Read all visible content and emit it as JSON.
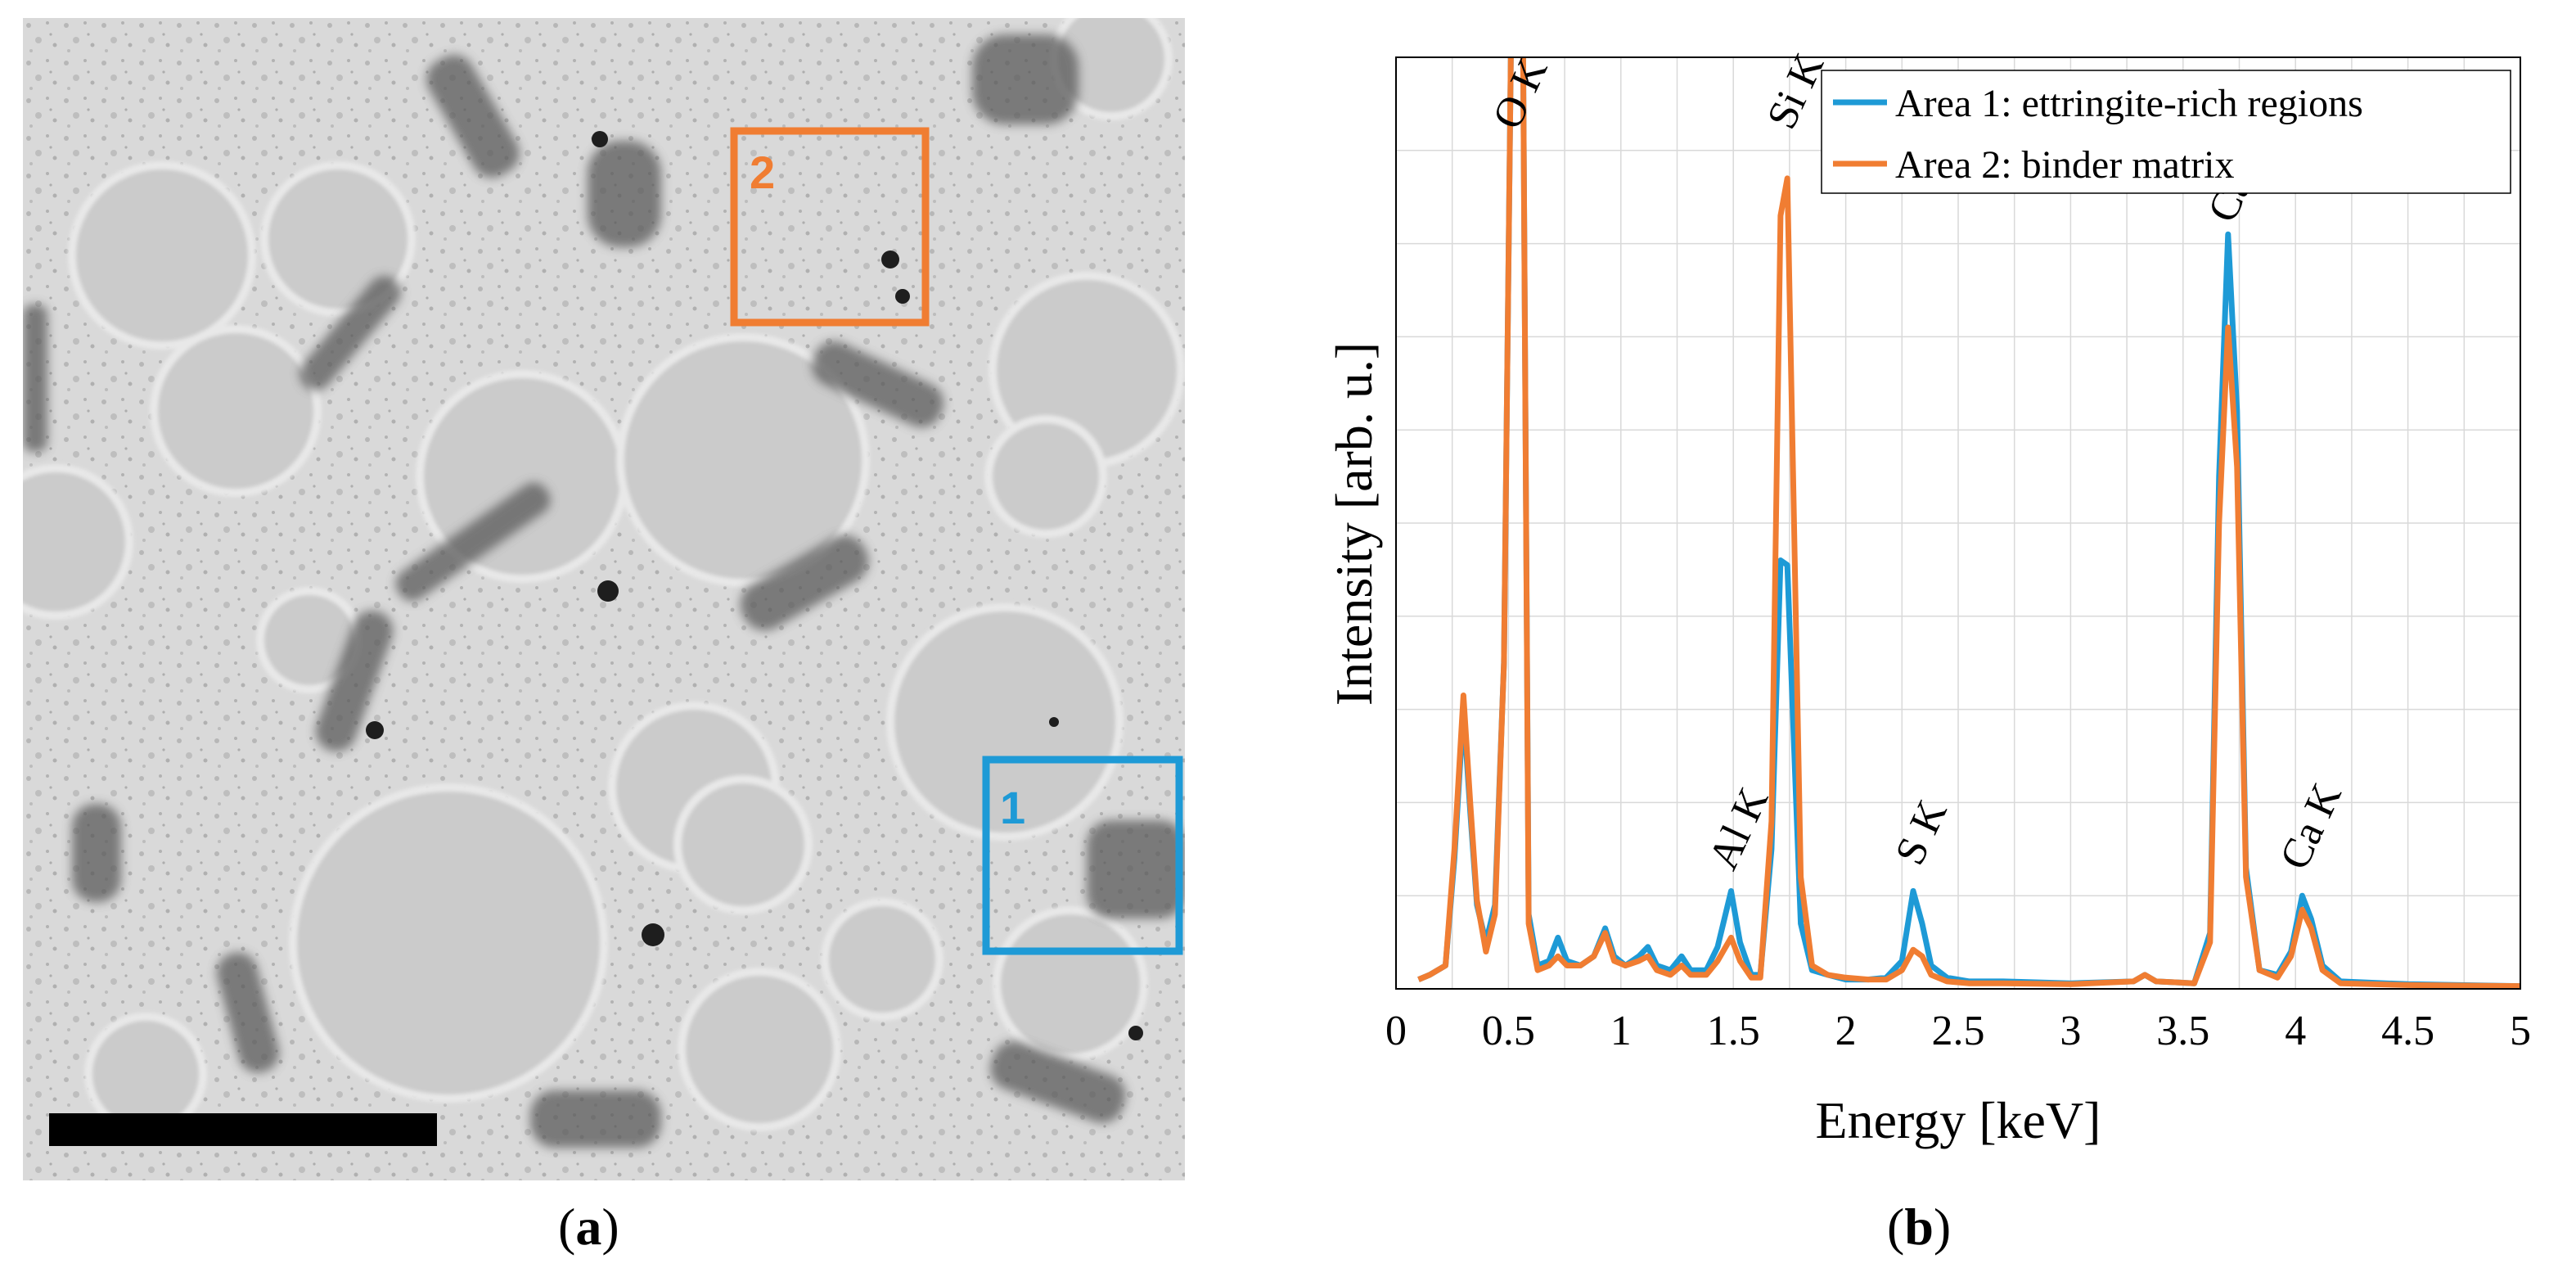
{
  "panels": {
    "a": {
      "caption_open": "(",
      "caption_letter": "a",
      "caption_close": ")",
      "regions": [
        {
          "label": "2",
          "color": "#F07D32"
        },
        {
          "label": "1",
          "color": "#1E9AD6"
        }
      ]
    },
    "b": {
      "caption_open": "(",
      "caption_letter": "b",
      "caption_close": ")"
    }
  },
  "chart_data": {
    "type": "line",
    "title": "",
    "xlabel": "Energy [keV]",
    "ylabel": "Intensity [arb. u.]",
    "xlim": [
      0,
      5
    ],
    "ylim": [
      0,
      10
    ],
    "xticks": [
      "0",
      "0.5",
      "1",
      "1.5",
      "2",
      "2.5",
      "3",
      "3.5",
      "4",
      "4.5",
      "5"
    ],
    "grid": true,
    "legend_position": "top-right",
    "series": [
      {
        "name": "Area 1: ettringite-rich regions",
        "color": "#1E9AD6",
        "points": [
          [
            0.1,
            0.1
          ],
          [
            0.15,
            0.15
          ],
          [
            0.22,
            0.25
          ],
          [
            0.26,
            1.4
          ],
          [
            0.3,
            3.0
          ],
          [
            0.33,
            1.9
          ],
          [
            0.36,
            0.9
          ],
          [
            0.4,
            0.5
          ],
          [
            0.44,
            0.9
          ],
          [
            0.48,
            3.5
          ],
          [
            0.52,
            12
          ],
          [
            0.56,
            12
          ],
          [
            0.59,
            0.8
          ],
          [
            0.63,
            0.25
          ],
          [
            0.68,
            0.3
          ],
          [
            0.72,
            0.55
          ],
          [
            0.76,
            0.3
          ],
          [
            0.82,
            0.25
          ],
          [
            0.88,
            0.35
          ],
          [
            0.93,
            0.65
          ],
          [
            0.97,
            0.35
          ],
          [
            1.02,
            0.25
          ],
          [
            1.08,
            0.35
          ],
          [
            1.12,
            0.45
          ],
          [
            1.16,
            0.25
          ],
          [
            1.22,
            0.2
          ],
          [
            1.27,
            0.35
          ],
          [
            1.31,
            0.2
          ],
          [
            1.38,
            0.2
          ],
          [
            1.43,
            0.45
          ],
          [
            1.49,
            1.05
          ],
          [
            1.53,
            0.5
          ],
          [
            1.58,
            0.15
          ],
          [
            1.62,
            0.15
          ],
          [
            1.67,
            1.5
          ],
          [
            1.71,
            4.6
          ],
          [
            1.74,
            4.55
          ],
          [
            1.77,
            2.6
          ],
          [
            1.8,
            0.7
          ],
          [
            1.85,
            0.2
          ],
          [
            1.92,
            0.15
          ],
          [
            2.0,
            0.1
          ],
          [
            2.1,
            0.1
          ],
          [
            2.18,
            0.12
          ],
          [
            2.25,
            0.3
          ],
          [
            2.3,
            1.05
          ],
          [
            2.34,
            0.7
          ],
          [
            2.38,
            0.25
          ],
          [
            2.45,
            0.12
          ],
          [
            2.55,
            0.08
          ],
          [
            2.7,
            0.08
          ],
          [
            3.0,
            0.06
          ],
          [
            3.28,
            0.08
          ],
          [
            3.33,
            0.15
          ],
          [
            3.38,
            0.08
          ],
          [
            3.55,
            0.06
          ],
          [
            3.62,
            0.6
          ],
          [
            3.66,
            5.5
          ],
          [
            3.7,
            8.1
          ],
          [
            3.74,
            6.2
          ],
          [
            3.78,
            1.3
          ],
          [
            3.84,
            0.2
          ],
          [
            3.92,
            0.15
          ],
          [
            3.98,
            0.4
          ],
          [
            4.03,
            1.0
          ],
          [
            4.07,
            0.75
          ],
          [
            4.12,
            0.25
          ],
          [
            4.2,
            0.08
          ],
          [
            4.5,
            0.05
          ],
          [
            5.0,
            0.03
          ]
        ]
      },
      {
        "name": "Area 2: binder matrix",
        "color": "#F07D32",
        "points": [
          [
            0.1,
            0.1
          ],
          [
            0.15,
            0.15
          ],
          [
            0.22,
            0.25
          ],
          [
            0.26,
            1.5
          ],
          [
            0.3,
            3.15
          ],
          [
            0.33,
            2.0
          ],
          [
            0.36,
            0.95
          ],
          [
            0.4,
            0.4
          ],
          [
            0.44,
            0.8
          ],
          [
            0.48,
            3.5
          ],
          [
            0.52,
            12
          ],
          [
            0.56,
            12
          ],
          [
            0.59,
            0.7
          ],
          [
            0.63,
            0.2
          ],
          [
            0.68,
            0.25
          ],
          [
            0.72,
            0.35
          ],
          [
            0.76,
            0.25
          ],
          [
            0.82,
            0.25
          ],
          [
            0.88,
            0.35
          ],
          [
            0.93,
            0.6
          ],
          [
            0.97,
            0.3
          ],
          [
            1.02,
            0.25
          ],
          [
            1.08,
            0.3
          ],
          [
            1.12,
            0.35
          ],
          [
            1.16,
            0.2
          ],
          [
            1.22,
            0.15
          ],
          [
            1.27,
            0.25
          ],
          [
            1.31,
            0.15
          ],
          [
            1.38,
            0.15
          ],
          [
            1.43,
            0.3
          ],
          [
            1.49,
            0.55
          ],
          [
            1.53,
            0.3
          ],
          [
            1.58,
            0.12
          ],
          [
            1.62,
            0.12
          ],
          [
            1.67,
            1.8
          ],
          [
            1.71,
            8.3
          ],
          [
            1.74,
            8.7
          ],
          [
            1.77,
            5.0
          ],
          [
            1.8,
            1.2
          ],
          [
            1.85,
            0.25
          ],
          [
            1.92,
            0.15
          ],
          [
            2.0,
            0.12
          ],
          [
            2.1,
            0.1
          ],
          [
            2.18,
            0.1
          ],
          [
            2.25,
            0.2
          ],
          [
            2.3,
            0.42
          ],
          [
            2.34,
            0.35
          ],
          [
            2.38,
            0.15
          ],
          [
            2.45,
            0.08
          ],
          [
            2.55,
            0.06
          ],
          [
            2.7,
            0.06
          ],
          [
            3.0,
            0.05
          ],
          [
            3.28,
            0.08
          ],
          [
            3.33,
            0.15
          ],
          [
            3.38,
            0.08
          ],
          [
            3.55,
            0.06
          ],
          [
            3.62,
            0.5
          ],
          [
            3.66,
            5.0
          ],
          [
            3.7,
            7.1
          ],
          [
            3.74,
            5.6
          ],
          [
            3.78,
            1.2
          ],
          [
            3.84,
            0.2
          ],
          [
            3.92,
            0.12
          ],
          [
            3.98,
            0.35
          ],
          [
            4.03,
            0.85
          ],
          [
            4.07,
            0.65
          ],
          [
            4.12,
            0.2
          ],
          [
            4.2,
            0.06
          ],
          [
            4.5,
            0.04
          ],
          [
            5.0,
            0.03
          ]
        ]
      }
    ],
    "annotations": [
      {
        "text": "O K",
        "x": 0.54,
        "y": 9.2
      },
      {
        "text": "Si K",
        "x": 1.76,
        "y": 9.2
      },
      {
        "text": "Ca K",
        "x": 3.72,
        "y": 8.2
      },
      {
        "text": "Al K",
        "x": 1.5,
        "y": 1.25
      },
      {
        "text": "S K",
        "x": 2.33,
        "y": 1.3
      },
      {
        "text": "Ca K",
        "x": 4.04,
        "y": 1.25
      }
    ]
  }
}
